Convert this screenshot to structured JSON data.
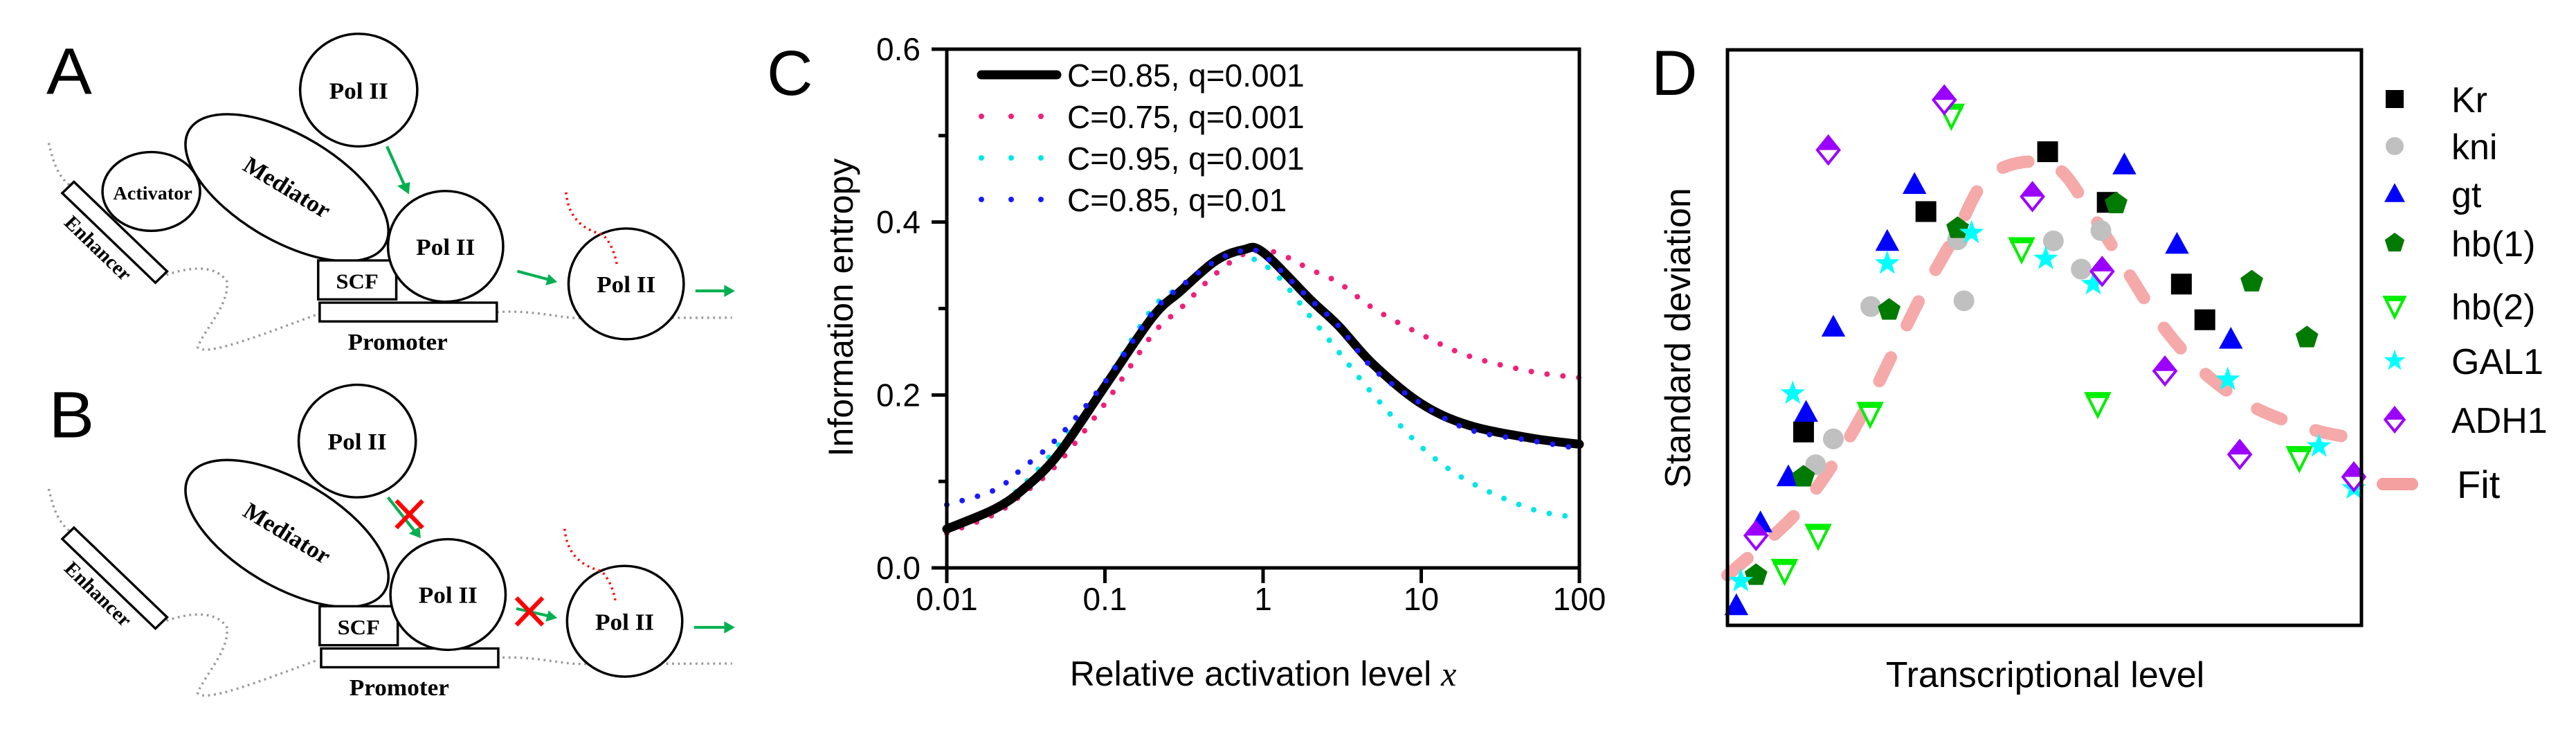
{
  "panels": {
    "a": "A",
    "b": "B",
    "c": "C",
    "d": "D"
  },
  "diagram": {
    "pol2": "Pol II",
    "mediator": "Mediator",
    "activator": "Activator",
    "enhancer": "Enhancer",
    "scf": "SCF",
    "promoter": "Promoter"
  },
  "colors": {
    "arrow": "#00b050",
    "block": "#ff0000",
    "rna": "#ff0000",
    "dna": "#999999"
  },
  "chart_data": [
    {
      "type": "line",
      "panel": "C",
      "xlabel": "Relative activation level ",
      "xlabel_var": "x",
      "ylabel": "Information entropy",
      "xscale": "log",
      "xlim": [
        0.01,
        100
      ],
      "ylim": [
        0,
        0.6
      ],
      "xticks": [
        "0.01",
        "0.1",
        "1",
        "10",
        "100"
      ],
      "xtick_values": [
        0.01,
        0.1,
        1,
        10,
        100
      ],
      "yticks": [
        "0.0",
        "0.2",
        "0.4",
        "0.6"
      ],
      "ytick_values": [
        0,
        0.2,
        0.4,
        0.6
      ],
      "legend_position": "top-left",
      "series": [
        {
          "name": "C=0.85, q=0.001",
          "color": "#000000",
          "style": "solid",
          "x": [
            0.01,
            0.02,
            0.03,
            0.05,
            0.1,
            0.2,
            0.3,
            0.5,
            0.75,
            1,
            2,
            3,
            5,
            10,
            20,
            50,
            100
          ],
          "y": [
            0.045,
            0.068,
            0.09,
            0.13,
            0.21,
            0.29,
            0.32,
            0.355,
            0.368,
            0.365,
            0.31,
            0.28,
            0.235,
            0.19,
            0.165,
            0.15,
            0.143
          ]
        },
        {
          "name": "C=0.75, q=0.001",
          "color": "#f0207a",
          "style": "dotted",
          "x": [
            0.01,
            0.02,
            0.03,
            0.05,
            0.1,
            0.2,
            0.3,
            0.5,
            0.8,
            1.2,
            2,
            3,
            5,
            10,
            20,
            50,
            100
          ],
          "y": [
            0.04,
            0.062,
            0.085,
            0.12,
            0.19,
            0.27,
            0.3,
            0.34,
            0.365,
            0.365,
            0.345,
            0.33,
            0.3,
            0.27,
            0.245,
            0.227,
            0.22
          ]
        },
        {
          "name": "C=0.95, q=0.001",
          "color": "#00e5e5",
          "style": "dotted",
          "x": [
            0.01,
            0.02,
            0.03,
            0.05,
            0.1,
            0.2,
            0.3,
            0.6,
            0.8,
            1.2,
            2,
            3,
            5,
            10,
            20,
            50,
            100
          ],
          "y": [
            0.043,
            0.07,
            0.095,
            0.14,
            0.215,
            0.3,
            0.325,
            0.362,
            0.36,
            0.34,
            0.29,
            0.25,
            0.2,
            0.14,
            0.1,
            0.068,
            0.058
          ]
        },
        {
          "name": "C=0.85, q=0.01",
          "color": "#1a1aff",
          "style": "dotted",
          "x": [
            0.01,
            0.02,
            0.03,
            0.05,
            0.1,
            0.2,
            0.3,
            0.5,
            0.75,
            1,
            2,
            3,
            5,
            10,
            20,
            50,
            100
          ],
          "y": [
            0.073,
            0.09,
            0.115,
            0.15,
            0.215,
            0.295,
            0.325,
            0.355,
            0.367,
            0.362,
            0.31,
            0.28,
            0.23,
            0.19,
            0.16,
            0.147,
            0.138
          ]
        }
      ]
    },
    {
      "type": "scatter",
      "panel": "D",
      "xlabel": "Transcriptional level",
      "ylabel": "Standard deviation",
      "xlim": [
        0,
        1
      ],
      "ylim": [
        0,
        1
      ],
      "units": "arbitrary (no tick labels)",
      "legend_position": "right",
      "series": [
        {
          "name": "Kr",
          "marker": "square",
          "color": "#000000",
          "x": [
            0.505,
            0.313,
            0.599,
            0.716,
            0.753,
            0.12
          ],
          "y": [
            0.823,
            0.719,
            0.735,
            0.593,
            0.531,
            0.336
          ]
        },
        {
          "name": "kni",
          "marker": "circle",
          "color": "#c0c0c0",
          "x": [
            0.363,
            0.514,
            0.589,
            0.558,
            0.373,
            0.226,
            0.167,
            0.139
          ],
          "y": [
            0.67,
            0.668,
            0.686,
            0.619,
            0.564,
            0.554,
            0.324,
            0.279
          ]
        },
        {
          "name": "gt",
          "marker": "triangle-up",
          "color": "#0000ff",
          "x": [
            0.626,
            0.295,
            0.252,
            0.167,
            0.709,
            0.794,
            0.124,
            0.096,
            0.052,
            0.014
          ],
          "y": [
            0.8,
            0.766,
            0.667,
            0.518,
            0.662,
            0.497,
            0.37,
            0.258,
            0.178,
            0.034
          ]
        },
        {
          "name": "hb(1)",
          "marker": "pentagon",
          "color": "#007a00",
          "x": [
            0.613,
            0.363,
            0.255,
            0.827,
            0.914,
            0.12,
            0.045
          ],
          "y": [
            0.733,
            0.69,
            0.548,
            0.597,
            0.5,
            0.258,
            0.087
          ]
        },
        {
          "name": "hb(2)",
          "marker": "triangle-down-open",
          "color": "#00ee00",
          "x": [
            0.353,
            0.464,
            0.584,
            0.225,
            0.143,
            0.09,
            0.902
          ],
          "y": [
            0.886,
            0.654,
            0.385,
            0.368,
            0.156,
            0.095,
            0.291
          ]
        },
        {
          "name": "GAL1",
          "marker": "star",
          "color": "#00ffff",
          "x": [
            0.385,
            0.252,
            0.502,
            0.577,
            0.789,
            0.103,
            0.933,
            0.988,
            0.021
          ],
          "y": [
            0.682,
            0.629,
            0.637,
            0.593,
            0.427,
            0.403,
            0.311,
            0.238,
            0.077
          ]
        },
        {
          "name": "ADH1",
          "marker": "diamond-half",
          "color": "#9b00ff",
          "x": [
            0.342,
            0.159,
            0.481,
            0.591,
            0.69,
            0.808,
            0.045,
            0.988
          ],
          "y": [
            0.913,
            0.826,
            0.745,
            0.615,
            0.442,
            0.297,
            0.156,
            0.258
          ]
        }
      ],
      "fit": {
        "name": "Fit",
        "color": "#f4a0a0",
        "style": "dashed",
        "x": [
          0.0,
          0.101,
          0.161,
          0.214,
          0.262,
          0.31,
          0.358,
          0.416,
          0.512,
          0.577,
          0.632,
          0.69,
          0.757,
          0.834,
          0.924,
          0.99
        ],
        "y": [
          0.087,
          0.186,
          0.271,
          0.369,
          0.475,
          0.581,
          0.675,
          0.784,
          0.8,
          0.71,
          0.613,
          0.515,
          0.434,
          0.377,
          0.34,
          0.325
        ]
      }
    }
  ]
}
